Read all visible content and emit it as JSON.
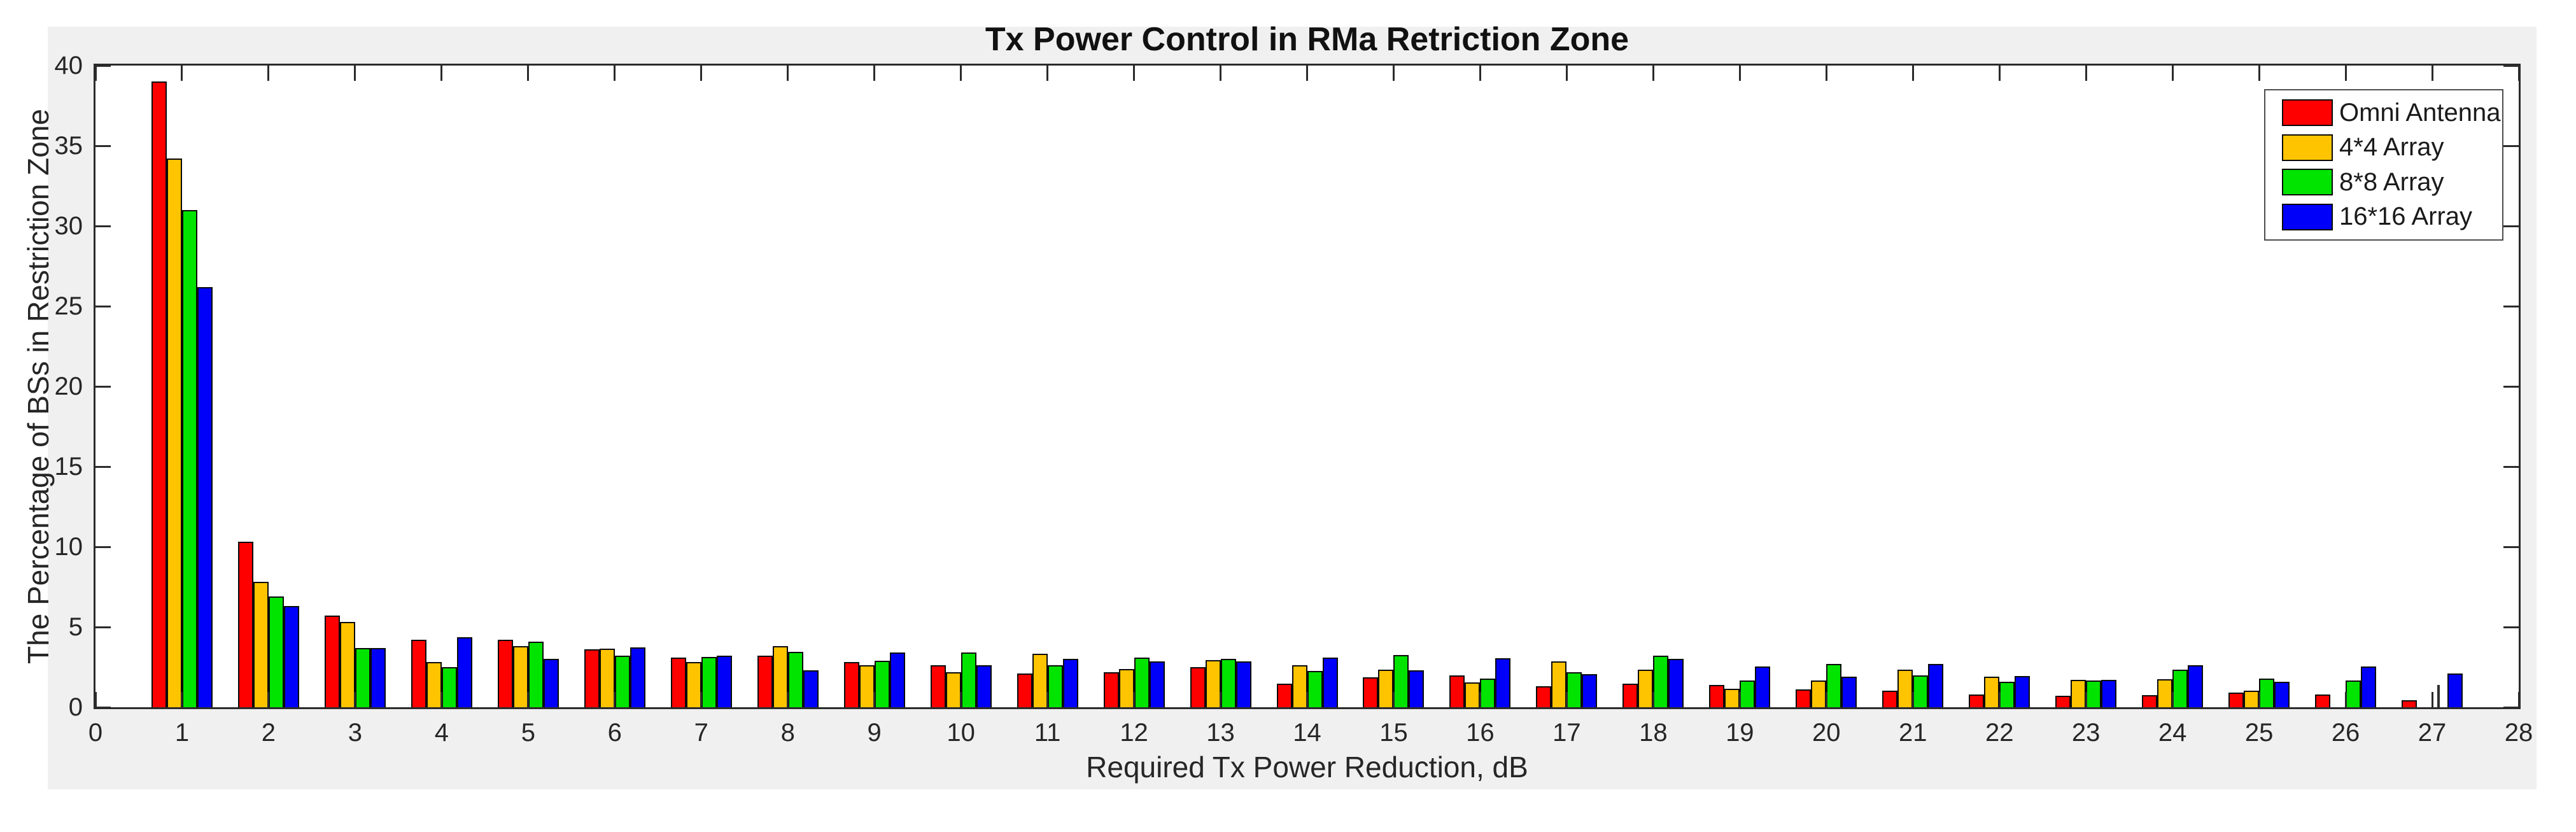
{
  "window": {
    "background": "#ffffff",
    "figure_background": "#f0f0f0",
    "axes_background": "#ffffff",
    "axis_color": "#2b2b2b"
  },
  "chart_data": {
    "type": "bar",
    "title": "Tx Power Control in RMa Retriction Zone",
    "xlabel": "Required Tx Power Reduction, dB",
    "ylabel": "The Percentage of BSs in Restriction Zone",
    "xlim": [
      0,
      28
    ],
    "ylim": [
      0,
      40
    ],
    "x_ticks": [
      0,
      1,
      2,
      3,
      4,
      5,
      6,
      7,
      8,
      9,
      10,
      11,
      12,
      13,
      14,
      15,
      16,
      17,
      18,
      19,
      20,
      21,
      22,
      23,
      24,
      25,
      26,
      27,
      28
    ],
    "y_ticks": [
      0,
      5,
      10,
      15,
      20,
      25,
      30,
      35,
      40
    ],
    "grid": false,
    "legend_position": "top-right",
    "categories": [
      1,
      2,
      3,
      4,
      5,
      6,
      7,
      8,
      9,
      10,
      11,
      12,
      13,
      14,
      15,
      16,
      17,
      18,
      19,
      20,
      21,
      22,
      23,
      24,
      25,
      26,
      27
    ],
    "series": [
      {
        "name": "Omni Antenna",
        "color": "#ff0000",
        "values": [
          39.0,
          10.3,
          5.7,
          4.2,
          4.2,
          3.6,
          3.1,
          3.2,
          2.8,
          2.6,
          2.1,
          2.2,
          2.5,
          1.45,
          1.85,
          2.0,
          1.3,
          1.45,
          1.4,
          1.1,
          1.05,
          0.8,
          0.7,
          0.75,
          0.9,
          0.8,
          0.45
        ]
      },
      {
        "name": "4*4 Array",
        "color": "#ffc400",
        "values": [
          34.2,
          7.8,
          5.3,
          2.8,
          3.8,
          3.65,
          2.8,
          3.8,
          2.6,
          2.2,
          3.35,
          2.4,
          2.95,
          2.6,
          2.35,
          1.55,
          2.85,
          2.35,
          1.15,
          1.65,
          2.35,
          1.9,
          1.7,
          1.75,
          1.05,
          0,
          0
        ]
      },
      {
        "name": "8*8 Array",
        "color": "#00e400",
        "values": [
          31.0,
          6.9,
          3.7,
          2.5,
          4.1,
          3.2,
          3.15,
          3.45,
          2.9,
          3.4,
          2.6,
          3.1,
          3.0,
          2.25,
          3.25,
          1.8,
          2.2,
          3.2,
          1.65,
          2.7,
          2.0,
          1.6,
          1.65,
          2.35,
          1.8,
          1.65,
          1.4
        ]
      },
      {
        "name": "16*16 Array",
        "color": "#0000fa",
        "values": [
          26.2,
          6.3,
          3.7,
          4.35,
          3.0,
          3.75,
          3.2,
          2.3,
          3.4,
          2.6,
          3.0,
          2.85,
          2.85,
          3.1,
          2.3,
          3.05,
          2.05,
          3.0,
          2.55,
          1.9,
          2.7,
          1.95,
          1.7,
          2.6,
          1.6,
          2.55,
          2.1
        ]
      }
    ],
    "thin_line_bars": [
      {
        "x": 27,
        "series": "8*8 Array"
      }
    ],
    "annotations": [
      "Bar for 8*8 Array at x=27 is rendered as a thin vertical line in the source image"
    ]
  },
  "legend": {
    "items": [
      {
        "label": "Omni Antenna",
        "color": "#ff0000"
      },
      {
        "label": "4*4 Array",
        "color": "#ffc400"
      },
      {
        "label": "8*8 Array",
        "color": "#00e400"
      },
      {
        "label": "16*16 Array",
        "color": "#0000fa"
      }
    ]
  }
}
